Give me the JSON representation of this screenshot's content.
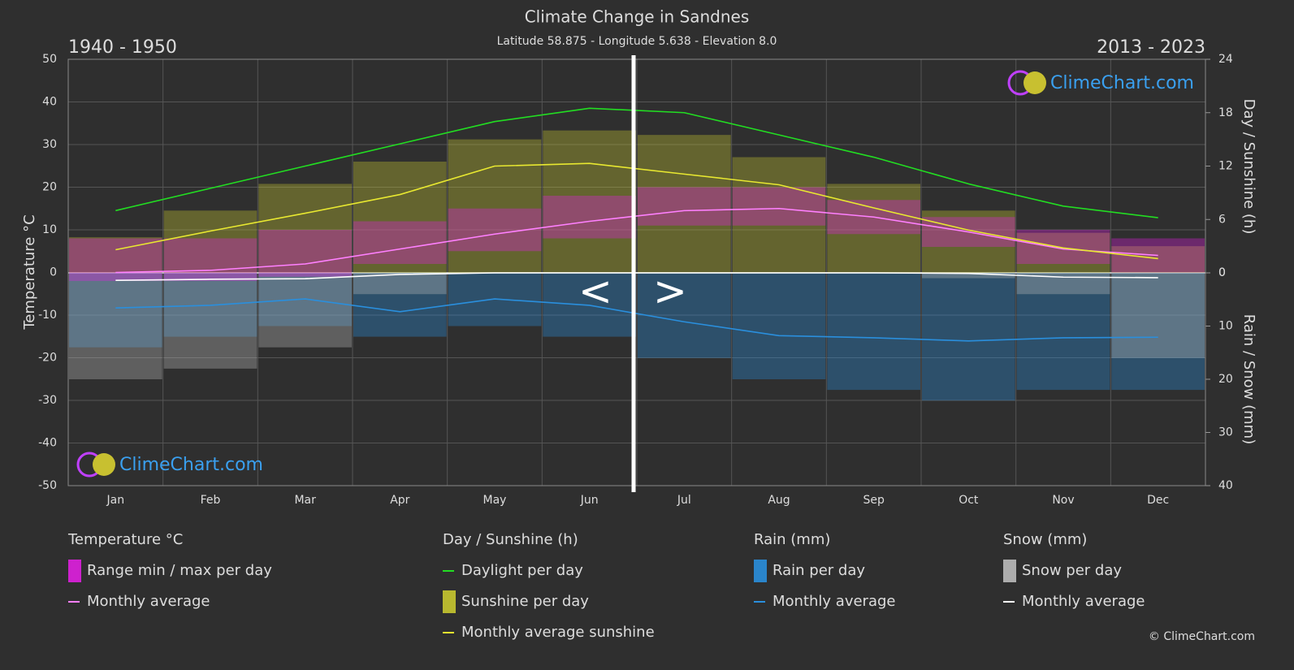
{
  "chart_data": {
    "type": "climate",
    "title": "Climate Change in Sandnes",
    "subtitle": "Latitude 58.875 - Longitude 5.638 - Elevation 8.0",
    "period_left": "1940 - 1950",
    "period_right": "2013 - 2023",
    "nav": {
      "prev": "<",
      "next": ">"
    },
    "logo_text": "ClimeChart.com",
    "copyright": "© ClimeChart.com",
    "categories": [
      "Jan",
      "Feb",
      "Mar",
      "Apr",
      "May",
      "Jun",
      "Jul",
      "Aug",
      "Sep",
      "Oct",
      "Nov",
      "Dec"
    ],
    "y_label": "Temperature °C",
    "ylim": [
      -50,
      50
    ],
    "yticks": [
      -50,
      -40,
      -30,
      -20,
      -10,
      0,
      10,
      20,
      30,
      40,
      50
    ],
    "sun_axis": {
      "label": "Day / Sunshine (h)",
      "lim": [
        0,
        24
      ],
      "ticks": [
        0,
        6,
        12,
        18,
        24
      ]
    },
    "rain_axis": {
      "label": "Rain / Snow (mm)",
      "lim": [
        0,
        40
      ],
      "ticks": [
        0,
        10,
        20,
        30,
        40
      ]
    },
    "grid": true,
    "groups": [
      {
        "title": "Temperature °C",
        "series": [
          {
            "name": "Range min / max per day",
            "kind": "range",
            "axis": "y",
            "color": "#e020e0",
            "min": [
              -2,
              -2,
              -1,
              2,
              5,
              8,
              11,
              11,
              9,
              6,
              2,
              0
            ],
            "max": [
              8,
              8,
              10,
              12,
              15,
              18,
              20,
              20,
              17,
              13,
              10,
              8
            ]
          },
          {
            "name": "Monthly average",
            "kind": "line",
            "axis": "y",
            "color": "#ff80ff",
            "values": [
              0,
              0.5,
              2,
              5.5,
              9,
              12,
              14.5,
              15,
              13,
              9.5,
              5.5,
              4
            ]
          }
        ]
      },
      {
        "title": "Day / Sunshine (h)",
        "series": [
          {
            "name": "Daylight per day",
            "kind": "line",
            "axis": "sun",
            "color": "#22dd22",
            "values": [
              7,
              9.5,
              12,
              14.5,
              17,
              18.5,
              18,
              15.5,
              13,
              10,
              7.5,
              6.2
            ]
          },
          {
            "name": "Sunshine per day",
            "kind": "bars",
            "axis": "sun",
            "color": "#c8c830",
            "values": [
              4,
              7,
              10,
              12.5,
              15,
              16,
              15.5,
              13,
              10,
              7,
              4.5,
              3
            ]
          },
          {
            "name": "Monthly average sunshine",
            "kind": "line",
            "axis": "sun",
            "color": "#e8e830",
            "values": [
              2.6,
              4.7,
              6.7,
              8.8,
              12,
              12.3,
              11.1,
              9.9,
              7.3,
              4.8,
              2.8,
              1.6
            ]
          }
        ]
      },
      {
        "title": "Rain (mm)",
        "series": [
          {
            "name": "Rain per day",
            "kind": "bars",
            "axis": "rain",
            "color": "#2a8fdd",
            "values": [
              14,
              12,
              10,
              12,
              10,
              12,
              16,
              20,
              22,
              24,
              22,
              22
            ]
          },
          {
            "name": "Monthly average",
            "kind": "line",
            "axis": "rain",
            "color": "#2a8fdd",
            "values": [
              6.6,
              6.1,
              4.9,
              7.3,
              4.9,
              6.1,
              9.2,
              11.8,
              12.2,
              12.8,
              12.2,
              12.1
            ]
          }
        ]
      },
      {
        "title": "Snow (mm)",
        "series": [
          {
            "name": "Snow per day",
            "kind": "bars",
            "axis": "rain",
            "color": "#bbbbbb",
            "values": [
              20,
              18,
              14,
              4,
              0,
              0,
              0,
              0,
              0,
              1,
              4,
              16
            ]
          },
          {
            "name": "Monthly average",
            "kind": "line",
            "axis": "rain",
            "color": "#ffffff",
            "values": [
              1.4,
              1.2,
              1.1,
              0.3,
              0,
              0,
              0,
              0,
              0,
              0.1,
              0.8,
              0.9
            ]
          }
        ]
      }
    ]
  }
}
